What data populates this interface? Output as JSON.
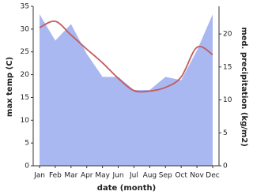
{
  "chart_data": {
    "type": "line",
    "categories": [
      "Jan",
      "Feb",
      "Mar",
      "Apr",
      "May",
      "Jun",
      "Jul",
      "Aug",
      "Sep",
      "Oct",
      "Nov",
      "Dec"
    ],
    "x_label": "date (month)",
    "y_label": "max temp (C)",
    "y2_label": "med. precipitation (kg/m2)",
    "ylim": [
      0,
      35
    ],
    "yticks": [
      0,
      5,
      10,
      15,
      20,
      25,
      30,
      35
    ],
    "y2lim": [
      0,
      24.2
    ],
    "y2ticks": [
      0,
      5,
      10,
      15,
      20
    ],
    "series": [
      {
        "name": "med. precipitation",
        "type": "area",
        "axis": "y2",
        "color": "#aab8f2",
        "values": [
          23,
          19,
          21.5,
          17,
          13.5,
          13.5,
          11.5,
          11.5,
          13.5,
          13,
          17.5,
          23
        ]
      },
      {
        "name": "max temp",
        "type": "line",
        "color": "#c25b5b",
        "values": [
          30.3,
          31.7,
          28.7,
          25.6,
          22.6,
          19.2,
          16.5,
          16.4,
          17.2,
          19.5,
          26,
          24.4
        ]
      }
    ]
  }
}
